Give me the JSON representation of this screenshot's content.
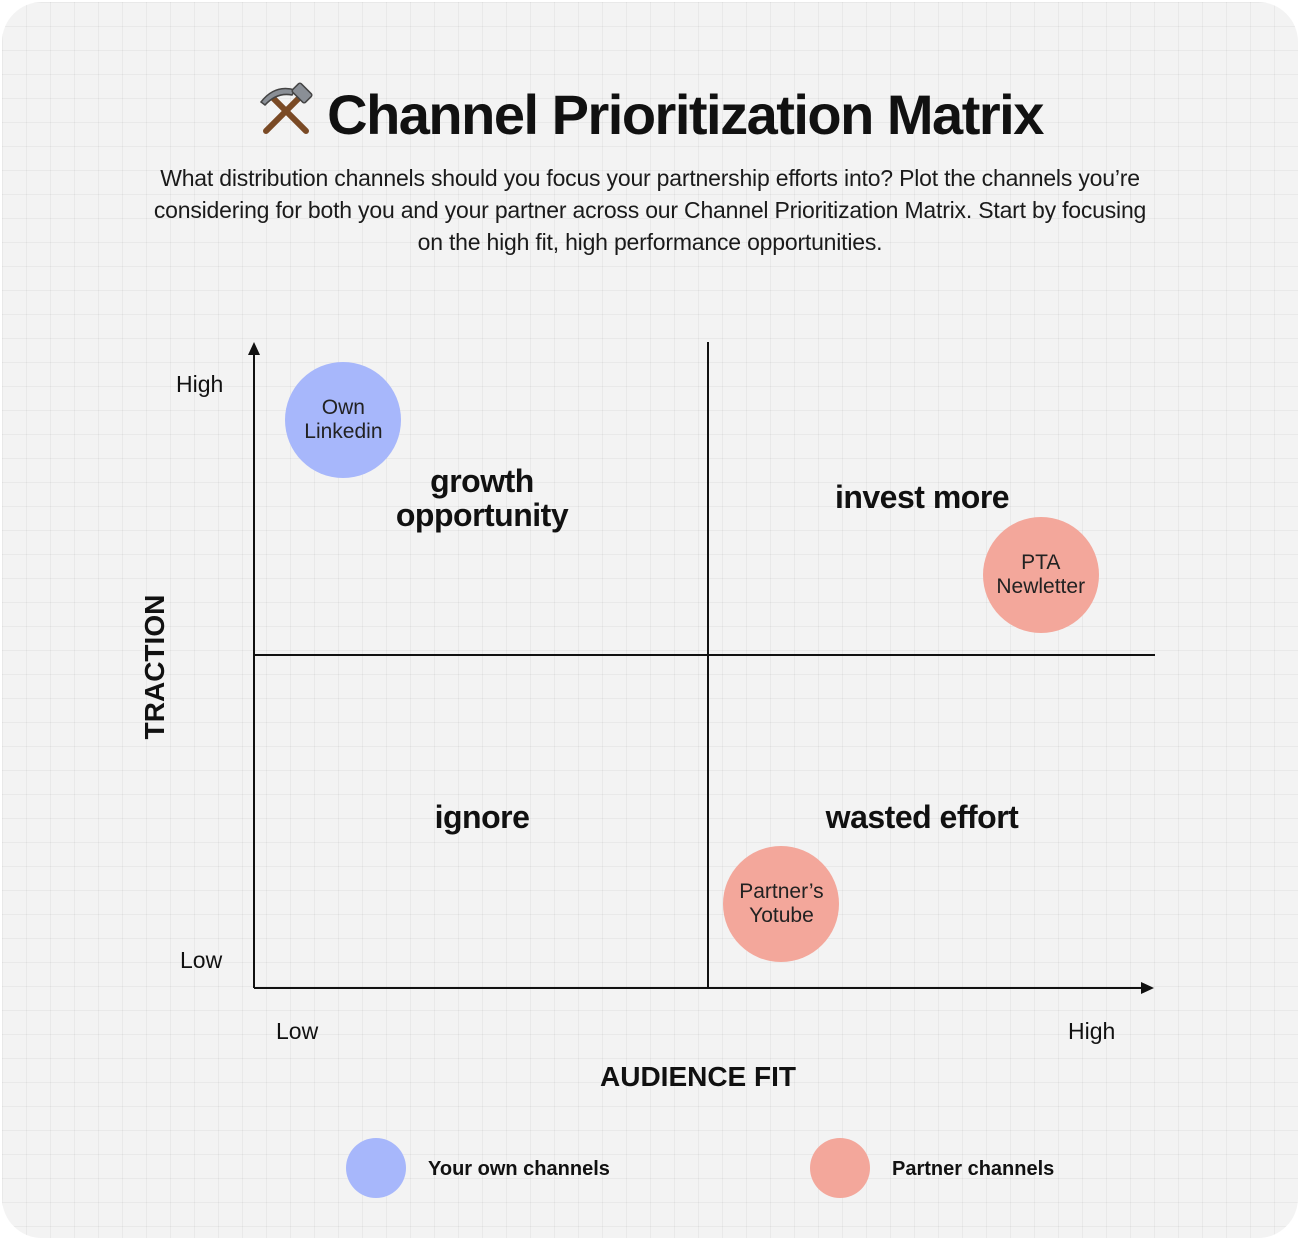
{
  "title": "Channel Prioritization Matrix",
  "title_icon": "hammer-and-pick-icon",
  "subtitle": "What distribution channels should you focus your partnership efforts into? Plot the channels you’re considering for both you and your partner across our Channel Prioritization Matrix. Start by focusing on the high fit, high performance opportunities.",
  "axes": {
    "x": {
      "title": "AUDIENCE FIT",
      "low": "Low",
      "high": "High"
    },
    "y": {
      "title": "TRACTION",
      "low": "Low",
      "high": "High"
    }
  },
  "quadrants": {
    "top_left": "growth opportunity",
    "top_right": "invest more",
    "bottom_left": "ignore",
    "bottom_right": "wasted effort"
  },
  "channels": [
    {
      "label_line1": "Own",
      "label_line2": "Linkedin",
      "group": "own",
      "audience_fit": 0.1,
      "traction": 0.88
    },
    {
      "label_line1": "PTA",
      "label_line2": "Newletter",
      "group": "partner",
      "audience_fit": 0.88,
      "traction": 0.64
    },
    {
      "label_line1": "Partner’s",
      "label_line2": "Yotube",
      "group": "partner",
      "audience_fit": 0.59,
      "traction": 0.13
    }
  ],
  "legend": {
    "own": "Your own channels",
    "partner": "Partner channels"
  },
  "colors": {
    "own": "#a7b7fb",
    "partner": "#f3a79b",
    "ink": "#111111",
    "background": "#f3f3f3"
  }
}
